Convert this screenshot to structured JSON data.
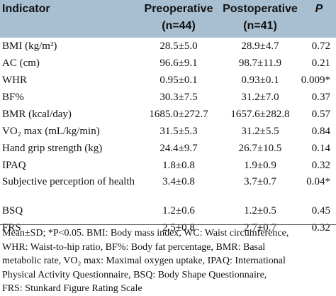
{
  "header": {
    "indicator": "Indicator",
    "pre_label": "Preoperative",
    "pre_n": "(n=44)",
    "post_label": "Postoperative",
    "post_n": "(n=41)",
    "p": "P"
  },
  "rows": [
    {
      "indicator": "BMI (kg/m²)",
      "pre": "28.5±5.0",
      "post": "28.9±4.7",
      "p": "0.72"
    },
    {
      "indicator": "AC (cm)",
      "pre": "96.6±9.1",
      "post": "98.7±11.9",
      "p": "0.21"
    },
    {
      "indicator": "WHR",
      "pre": "0.95±0.1",
      "post": "0.93±0.1",
      "p": "0.009*"
    },
    {
      "indicator": "BF%",
      "pre": "30.3±7.5",
      "post": "31.2±7.0",
      "p": "0.37"
    },
    {
      "indicator": "BMR (kcal/day)",
      "pre": "1685.0±272.7",
      "post": "1657.6±282.8",
      "p": "0.57"
    },
    {
      "indicator": "VO₂ max (mL/kg/min)",
      "pre": "31.5±5.3",
      "post": "31.2±5.5",
      "p": "0.84"
    },
    {
      "indicator": "Hand grip strength (kg)",
      "pre": "24.4±9.7",
      "post": "26.7±10.5",
      "p": "0.14"
    },
    {
      "indicator": "IPAQ",
      "pre": "1.8±0.8",
      "post": "1.9±0.9",
      "p": "0.32"
    },
    {
      "indicator": "Subjective perception of health",
      "pre": "3.4±0.8",
      "post": "3.7±0.7",
      "p": "0.04*"
    },
    {
      "indicator": "BSQ",
      "pre": "1.2±0.6",
      "post": "1.2±0.5",
      "p": "0.45"
    },
    {
      "indicator": "FRS",
      "pre": "2.5±0.8",
      "post": "2.7±0.7",
      "p": "0.32"
    }
  ],
  "footnote": [
    "Mean±SD; *P<0.05. BMI: Body mass index, WC: Waist circumference,",
    "WHR: Waist-to-hip ratio, BF%: Body fat percentage, BMR: Basal",
    "metabolic rate, VO₂ max: Maximal oxygen uptake, IPAQ: International",
    "Physical Activity Questionnaire, BSQ: Body Shape Questionnaire,",
    "FRS: Stunkard Figure Rating Scale"
  ],
  "colors": {
    "header_bg": "#a8bfd2"
  }
}
